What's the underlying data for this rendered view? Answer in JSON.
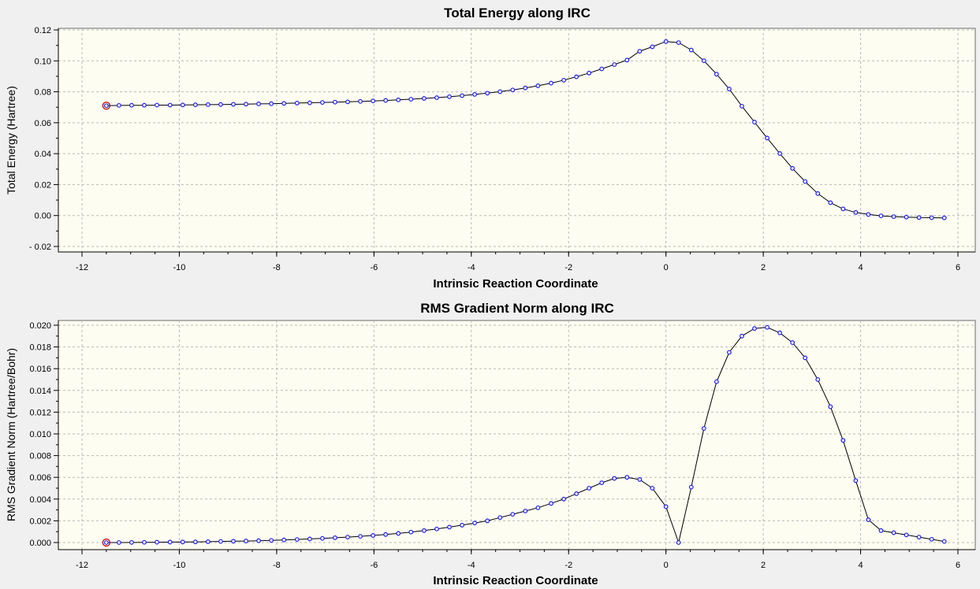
{
  "chart_data": [
    {
      "type": "line",
      "title": "Total Energy along IRC",
      "xlabel": "Intrinsic Reaction Coordinate",
      "ylabel": "Total Energy (Hartree)",
      "xlim": [
        -12,
        6
      ],
      "ylim": [
        -0.02,
        0.12
      ],
      "xticks": [
        -12,
        -10,
        -8,
        -6,
        -4,
        -2,
        0,
        2,
        4,
        6
      ],
      "yticks": [
        -0.02,
        0,
        0.02,
        0.04,
        0.06,
        0.08,
        0.1,
        0.12
      ],
      "ytick_decimals": 2,
      "grid": true,
      "line_color": "#000000",
      "marker_color": "#1a1aff",
      "highlight_color": "#d00000",
      "highlight_index": 0,
      "x": [
        -11.5,
        -11.24,
        -10.98,
        -10.72,
        -10.46,
        -10.19,
        -9.93,
        -9.67,
        -9.41,
        -9.15,
        -8.89,
        -8.63,
        -8.37,
        -8.11,
        -7.85,
        -7.58,
        -7.32,
        -7.06,
        -6.8,
        -6.54,
        -6.28,
        -6.02,
        -5.76,
        -5.5,
        -5.24,
        -4.97,
        -4.71,
        -4.45,
        -4.19,
        -3.93,
        -3.67,
        -3.41,
        -3.15,
        -2.89,
        -2.63,
        -2.36,
        -2.1,
        -1.84,
        -1.58,
        -1.32,
        -1.06,
        -0.8,
        -0.54,
        -0.28,
        0.0,
        0.26,
        0.52,
        0.78,
        1.04,
        1.3,
        1.56,
        1.82,
        2.08,
        2.34,
        2.6,
        2.86,
        3.12,
        3.38,
        3.64,
        3.9,
        4.16,
        4.42,
        4.68,
        4.94,
        5.2,
        5.46,
        5.72
      ],
      "y": [
        0.071,
        0.0712,
        0.0713,
        0.0713,
        0.0714,
        0.0714,
        0.0715,
        0.0716,
        0.0717,
        0.0718,
        0.0719,
        0.072,
        0.0722,
        0.0723,
        0.0725,
        0.0727,
        0.0729,
        0.0731,
        0.0733,
        0.0735,
        0.0738,
        0.0741,
        0.0744,
        0.0748,
        0.0752,
        0.0757,
        0.0762,
        0.0768,
        0.0775,
        0.0783,
        0.0791,
        0.0801,
        0.0812,
        0.0825,
        0.0839,
        0.0856,
        0.0875,
        0.0897,
        0.0921,
        0.0948,
        0.0976,
        0.1005,
        0.1062,
        0.1091,
        0.1125,
        0.1118,
        0.107,
        0.1001,
        0.0914,
        0.0818,
        0.0707,
        0.0604,
        0.0501,
        0.0401,
        0.0305,
        0.022,
        0.0142,
        0.0083,
        0.0043,
        0.002,
        0.0007,
        -0.0002,
        -0.0007,
        -0.001,
        -0.0013,
        -0.0014,
        -0.0015
      ]
    },
    {
      "type": "line",
      "title": "RMS Gradient Norm along IRC",
      "xlabel": "Intrinsic Reaction Coordinate",
      "ylabel": "RMS Gradient Norm (Hartree/Bohr)",
      "xlim": [
        -12,
        6
      ],
      "ylim": [
        0,
        0.02
      ],
      "xticks": [
        -12,
        -10,
        -8,
        -6,
        -4,
        -2,
        0,
        2,
        4,
        6
      ],
      "yticks": [
        0,
        0.002,
        0.004,
        0.006,
        0.008,
        0.01,
        0.012,
        0.014,
        0.016,
        0.018,
        0.02
      ],
      "ytick_decimals": 3,
      "grid": true,
      "line_color": "#000000",
      "marker_color": "#1a1aff",
      "highlight_color": "#d00000",
      "highlight_index": 0,
      "x": [
        -11.5,
        -11.24,
        -10.98,
        -10.72,
        -10.46,
        -10.19,
        -9.93,
        -9.67,
        -9.41,
        -9.15,
        -8.89,
        -8.63,
        -8.37,
        -8.11,
        -7.85,
        -7.58,
        -7.32,
        -7.06,
        -6.8,
        -6.54,
        -6.28,
        -6.02,
        -5.76,
        -5.5,
        -5.24,
        -4.97,
        -4.71,
        -4.45,
        -4.19,
        -3.93,
        -3.67,
        -3.41,
        -3.15,
        -2.89,
        -2.63,
        -2.36,
        -2.1,
        -1.84,
        -1.58,
        -1.32,
        -1.06,
        -0.8,
        -0.54,
        -0.28,
        0.0,
        0.26,
        0.52,
        0.78,
        1.04,
        1.3,
        1.56,
        1.82,
        2.08,
        2.34,
        2.6,
        2.86,
        3.12,
        3.38,
        3.64,
        3.9,
        4.16,
        4.42,
        4.68,
        4.94,
        5.2,
        5.46,
        5.72
      ],
      "y": [
        0.0,
        0.0,
        1e-05,
        2e-05,
        3e-05,
        4e-05,
        5e-05,
        6e-05,
        8e-05,
        0.0001,
        0.00012,
        0.00014,
        0.00017,
        0.0002,
        0.00024,
        0.00028,
        0.00033,
        0.00038,
        0.00044,
        0.0005,
        0.00057,
        0.00065,
        0.00074,
        0.00084,
        0.00096,
        0.0011,
        0.00125,
        0.00142,
        0.0016,
        0.0018,
        0.002,
        0.0023,
        0.0026,
        0.0029,
        0.0032,
        0.0036,
        0.004,
        0.0045,
        0.005,
        0.0055,
        0.0059,
        0.006,
        0.0058,
        0.005,
        0.0033,
        0.0,
        0.0051,
        0.0105,
        0.0148,
        0.0175,
        0.019,
        0.0197,
        0.0198,
        0.0193,
        0.0184,
        0.017,
        0.015,
        0.0125,
        0.0094,
        0.0057,
        0.0021,
        0.0011,
        0.0009,
        0.0007,
        0.0005,
        0.0003,
        0.0001
      ]
    }
  ]
}
